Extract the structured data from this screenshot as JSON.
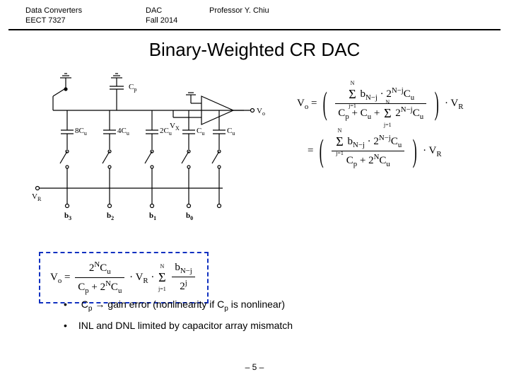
{
  "header": {
    "course_line1": "Data Converters",
    "course_line2": "EECT 7327",
    "topic_line1": "DAC",
    "topic_line2": "Fall 2014",
    "prof": "Professor Y. Chiu"
  },
  "title": "Binary-Weighted CR DAC",
  "circuit": {
    "caps": [
      "8C",
      "4C",
      "2C",
      "C",
      "C"
    ],
    "cap_sub": "u",
    "bits": [
      "b",
      "b",
      "b",
      "b"
    ],
    "bit_sub": [
      "3",
      "2",
      "1",
      "0"
    ],
    "vref": "V",
    "vref_sub": "R",
    "vx": "V",
    "vx_sub": "X",
    "vo": "V",
    "vo_sub": "o",
    "cp": "C",
    "cp_sub": "p",
    "colors": {
      "stroke": "#000000",
      "box_dash": "#1030c0"
    }
  },
  "eq1": {
    "lhs": "V",
    "lhs_sub": "o",
    "num_sigma_top": "N",
    "num_sigma_bot": "j=1",
    "num_body": "b",
    "num_body_sub": "N−j",
    "num_body2": " · 2",
    "num_body2_sup": "N−j",
    "num_body3": "C",
    "num_body3_sub": "u",
    "den_a": "C",
    "den_a_sub": "p",
    "den_plus1": " + C",
    "den_b_sub": "u",
    "den_plus2": " + ",
    "den_sigma_top": "N",
    "den_sigma_bot": "j=1",
    "den_body": "2",
    "den_body_sup": "N−j",
    "den_body2": "C",
    "den_body2_sub": "u",
    "tail": " · V",
    "tail_sub": "R"
  },
  "eq2": {
    "num_sigma_top": "N",
    "num_sigma_bot": "j=1",
    "num_body": "b",
    "num_body_sub": "N−j",
    "num_body2": " · 2",
    "num_body2_sup": "N−j",
    "num_body3": "C",
    "num_body3_sub": "u",
    "den_a": "C",
    "den_a_sub": "p",
    "den_plus": " + 2",
    "den_b_sup": "N",
    "den_b2": "C",
    "den_b2_sub": "u",
    "tail": " · V",
    "tail_sub": "R"
  },
  "eq3": {
    "lhs": "V",
    "lhs_sub": "o",
    "fr1_num": "2",
    "fr1_num_sup": "N",
    "fr1_num2": "C",
    "fr1_num2_sub": "u",
    "fr1_den_a": "C",
    "fr1_den_a_sub": "p",
    "fr1_den_plus": " + 2",
    "fr1_den_b_sup": "N",
    "fr1_den_b2": "C",
    "fr1_den_b2_sub": "u",
    "mid": " · V",
    "mid_sub": "R",
    "mid2": " · ",
    "sigma_top": "N",
    "sigma_bot": "j=1",
    "fr2_num": "b",
    "fr2_num_sub": "N−j",
    "fr2_den": "2",
    "fr2_den_sup": "j"
  },
  "bullets": {
    "b1_a": "C",
    "b1_a_sub": "p",
    "b1_b": " → gain error (nonlinearity if C",
    "b1_b_sub": "p",
    "b1_c": " is nonlinear)",
    "b2": "INL and DNL limited by capacitor array mismatch"
  },
  "footer": "– 5 –"
}
